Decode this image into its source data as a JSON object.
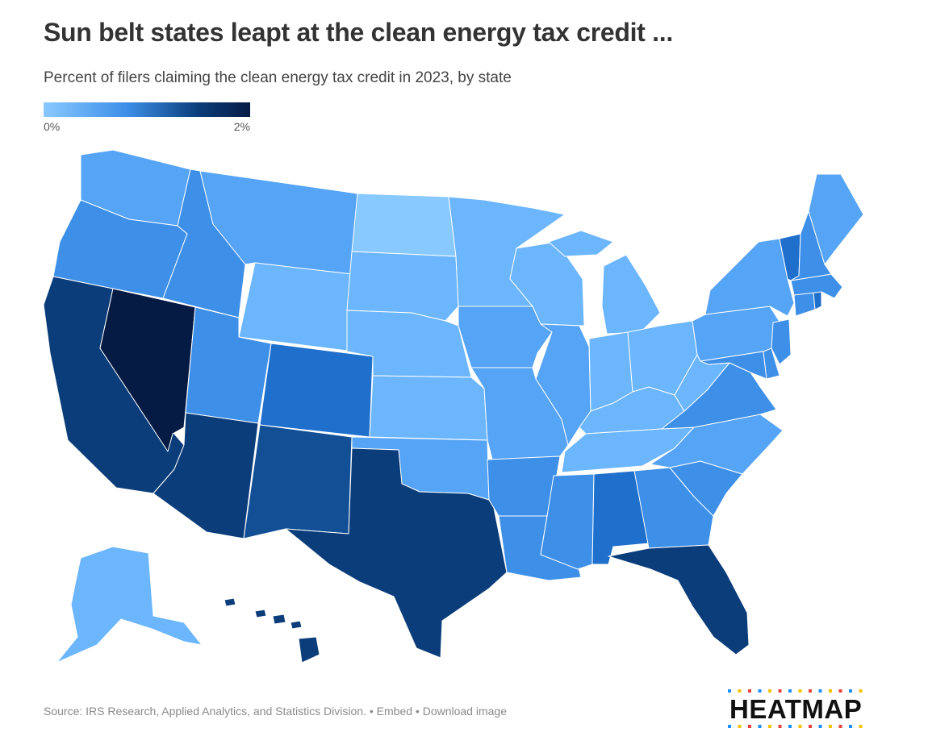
{
  "header": {
    "title": "Sun belt states leapt at the clean energy tax credit ...",
    "subtitle": "Percent of filers claiming the clean energy tax credit in 2023, by state"
  },
  "legend": {
    "min_label": "0%",
    "max_label": "2%",
    "scale": [
      "#88c9ff",
      "#3d8fe8",
      "#0b3d7a",
      "#061b44"
    ]
  },
  "colors": {
    "tier1": "#88c9ff",
    "tier2": "#6bb6fc",
    "tier3": "#56a4f5",
    "tier4": "#3d8fe8",
    "tier5": "#1f6fcc",
    "tier6": "#134f95",
    "tier7": "#0b3d7a",
    "tier8": "#061b44",
    "border": "#ffffff"
  },
  "states": [
    {
      "id": "WA",
      "name": "Washington",
      "tier": "tier3"
    },
    {
      "id": "OR",
      "name": "Oregon",
      "tier": "tier4"
    },
    {
      "id": "CA",
      "name": "California",
      "tier": "tier7"
    },
    {
      "id": "NV",
      "name": "Nevada",
      "tier": "tier8"
    },
    {
      "id": "ID",
      "name": "Idaho",
      "tier": "tier4"
    },
    {
      "id": "MT",
      "name": "Montana",
      "tier": "tier3"
    },
    {
      "id": "WY",
      "name": "Wyoming",
      "tier": "tier2"
    },
    {
      "id": "UT",
      "name": "Utah",
      "tier": "tier4"
    },
    {
      "id": "AZ",
      "name": "Arizona",
      "tier": "tier7"
    },
    {
      "id": "CO",
      "name": "Colorado",
      "tier": "tier5"
    },
    {
      "id": "NM",
      "name": "New Mexico",
      "tier": "tier6"
    },
    {
      "id": "ND",
      "name": "North Dakota",
      "tier": "tier1"
    },
    {
      "id": "SD",
      "name": "South Dakota",
      "tier": "tier2"
    },
    {
      "id": "NE",
      "name": "Nebraska",
      "tier": "tier2"
    },
    {
      "id": "KS",
      "name": "Kansas",
      "tier": "tier2"
    },
    {
      "id": "OK",
      "name": "Oklahoma",
      "tier": "tier3"
    },
    {
      "id": "TX",
      "name": "Texas",
      "tier": "tier7"
    },
    {
      "id": "MN",
      "name": "Minnesota",
      "tier": "tier2"
    },
    {
      "id": "IA",
      "name": "Iowa",
      "tier": "tier3"
    },
    {
      "id": "MO",
      "name": "Missouri",
      "tier": "tier3"
    },
    {
      "id": "AR",
      "name": "Arkansas",
      "tier": "tier4"
    },
    {
      "id": "LA",
      "name": "Louisiana",
      "tier": "tier4"
    },
    {
      "id": "WI",
      "name": "Wisconsin",
      "tier": "tier2"
    },
    {
      "id": "IL",
      "name": "Illinois",
      "tier": "tier3"
    },
    {
      "id": "MI",
      "name": "Michigan",
      "tier": "tier2"
    },
    {
      "id": "IN",
      "name": "Indiana",
      "tier": "tier2"
    },
    {
      "id": "OH",
      "name": "Ohio",
      "tier": "tier2"
    },
    {
      "id": "KY",
      "name": "Kentucky",
      "tier": "tier2"
    },
    {
      "id": "TN",
      "name": "Tennessee",
      "tier": "tier2"
    },
    {
      "id": "MS",
      "name": "Mississippi",
      "tier": "tier4"
    },
    {
      "id": "AL",
      "name": "Alabama",
      "tier": "tier5"
    },
    {
      "id": "GA",
      "name": "Georgia",
      "tier": "tier4"
    },
    {
      "id": "FL",
      "name": "Florida",
      "tier": "tier7"
    },
    {
      "id": "SC",
      "name": "South Carolina",
      "tier": "tier4"
    },
    {
      "id": "NC",
      "name": "North Carolina",
      "tier": "tier3"
    },
    {
      "id": "VA",
      "name": "Virginia",
      "tier": "tier4"
    },
    {
      "id": "WV",
      "name": "West Virginia",
      "tier": "tier2"
    },
    {
      "id": "PA",
      "name": "Pennsylvania",
      "tier": "tier3"
    },
    {
      "id": "NY",
      "name": "New York",
      "tier": "tier3"
    },
    {
      "id": "MD",
      "name": "Maryland",
      "tier": "tier4"
    },
    {
      "id": "DE",
      "name": "Delaware",
      "tier": "tier4"
    },
    {
      "id": "NJ",
      "name": "New Jersey",
      "tier": "tier4"
    },
    {
      "id": "CT",
      "name": "Connecticut",
      "tier": "tier4"
    },
    {
      "id": "RI",
      "name": "Rhode Island",
      "tier": "tier5"
    },
    {
      "id": "MA",
      "name": "Massachusetts",
      "tier": "tier4"
    },
    {
      "id": "VT",
      "name": "Vermont",
      "tier": "tier5"
    },
    {
      "id": "NH",
      "name": "New Hampshire",
      "tier": "tier4"
    },
    {
      "id": "ME",
      "name": "Maine",
      "tier": "tier3"
    },
    {
      "id": "AK",
      "name": "Alaska",
      "tier": "tier2"
    },
    {
      "id": "HI",
      "name": "Hawaii",
      "tier": "tier7"
    }
  ],
  "footer": {
    "source": "Source: IRS Research, Applied Analytics, and Statistics Division.",
    "sep1": "•",
    "embed": "Embed",
    "sep2": "•",
    "download": "Download image"
  },
  "brand": {
    "name": "HEATMAP",
    "dot_colors": [
      "#1f8fff",
      "#f2c400",
      "#e8413a",
      "#1f8fff",
      "#f2c400",
      "#e8413a"
    ]
  }
}
